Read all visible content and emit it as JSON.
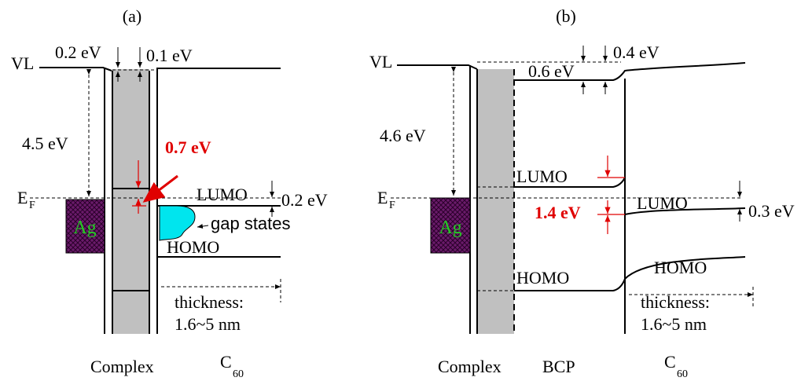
{
  "panel_a": {
    "label": "(a)",
    "vacuum_level": "VL",
    "vl_step_left": "0.2 eV",
    "vl_step_right": "0.1 eV",
    "work_function": "4.5 eV",
    "gap_offset": "0.7 eV",
    "fermi_level": "E",
    "fermi_subscript": "F",
    "metal": "Ag",
    "lumo": "LUMO",
    "lumo_offset": "0.2 eV",
    "gap_states": "gap states",
    "homo": "HOMO",
    "thickness_label": "thickness:",
    "thickness_value": "1.6~5 nm",
    "layer_complex": "Complex",
    "layer_c60": "C",
    "layer_c60_subscript": "60"
  },
  "panel_b": {
    "label": "(b)",
    "vacuum_level": "VL",
    "vl_step": "0.4 eV",
    "bcp_vl_step": "0.6 eV",
    "work_function": "4.6 eV",
    "fermi_level": "E",
    "fermi_subscript": "F",
    "metal": "Ag",
    "bcp_lumo": "LUMO",
    "gap_offset": "1.4 eV",
    "c60_lumo": "LUMO",
    "lumo_offset": "0.3 eV",
    "c60_homo": "HOMO",
    "bcp_homo": "HOMO",
    "thickness_label": "thickness:",
    "thickness_value": "1.6~5 nm",
    "layer_complex": "Complex",
    "layer_bcp": "BCP",
    "layer_c60": "C",
    "layer_c60_subscript": "60"
  }
}
